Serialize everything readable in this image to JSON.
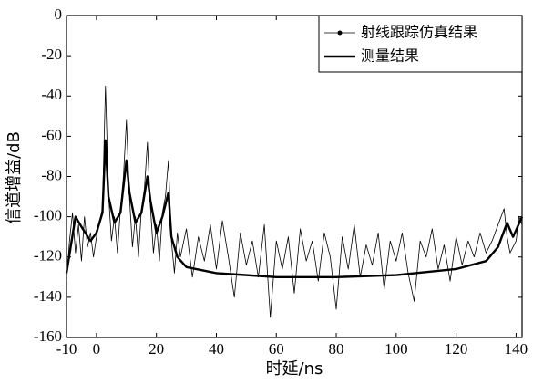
{
  "chart_data": {
    "type": "line",
    "x_label": "时延/ns",
    "y_label": "信道增益/dB",
    "xlim": [
      -10,
      142
    ],
    "xticks": [
      -10,
      0,
      20,
      40,
      60,
      80,
      100,
      120,
      140
    ],
    "ylim": [
      -160,
      0
    ],
    "yticks": [
      0,
      -20,
      -40,
      -60,
      -80,
      -100,
      -120,
      -140,
      -160
    ],
    "legend": "upper right",
    "series": [
      {
        "name": "射线跟踪仿真结果",
        "color": "#000000",
        "x": [
          -10,
          -9,
          -8,
          -7,
          -6,
          -5,
          -4,
          -3,
          -2,
          -1,
          0,
          1,
          2,
          3,
          4,
          5,
          6,
          7,
          8,
          9,
          10,
          11,
          12,
          13,
          14,
          15,
          16,
          17,
          18,
          19,
          20,
          21,
          22,
          23,
          24,
          25,
          26,
          27,
          28,
          30,
          32,
          34,
          36,
          38,
          40,
          42,
          44,
          46,
          48,
          50,
          52,
          54,
          56,
          58,
          60,
          62,
          64,
          66,
          68,
          70,
          72,
          74,
          76,
          78,
          80,
          82,
          84,
          86,
          88,
          90,
          92,
          94,
          96,
          98,
          100,
          102,
          104,
          106,
          108,
          110,
          112,
          114,
          116,
          118,
          120,
          122,
          124,
          126,
          128,
          130,
          132,
          134,
          136,
          137,
          138,
          140,
          141,
          142
        ],
        "values": [
          -132,
          -112,
          -98,
          -118,
          -104,
          -122,
          -100,
          -115,
          -108,
          -120,
          -110,
          -102,
          -96,
          -35,
          -88,
          -112,
          -100,
          -118,
          -96,
          -80,
          -52,
          -90,
          -115,
          -100,
          -120,
          -96,
          -86,
          -63,
          -95,
          -118,
          -104,
          -122,
          -98,
          -90,
          -72,
          -112,
          -128,
          -108,
          -120,
          -106,
          -130,
          -110,
          -122,
          -104,
          -126,
          -102,
          -120,
          -140,
          -108,
          -124,
          -112,
          -130,
          -104,
          -150,
          -112,
          -126,
          -110,
          -138,
          -106,
          -122,
          -112,
          -132,
          -108,
          -120,
          -146,
          -110,
          -126,
          -104,
          -130,
          -114,
          -124,
          -108,
          -136,
          -112,
          -122,
          -108,
          -128,
          -142,
          -112,
          -120,
          -106,
          -126,
          -114,
          -132,
          -110,
          -124,
          -112,
          -120,
          -108,
          -118,
          -112,
          -104,
          -96,
          -110,
          -118,
          -112,
          -100,
          -104
        ]
      },
      {
        "name": "测量结果",
        "color": "#000000",
        "x": [
          -10,
          -7,
          -5,
          -2,
          0,
          2,
          3,
          4,
          6,
          8,
          10,
          11,
          13,
          15,
          17,
          18,
          20,
          22,
          24,
          25,
          27,
          30,
          40,
          60,
          80,
          100,
          120,
          130,
          134,
          137,
          139,
          142
        ],
        "values": [
          -128,
          -100,
          -105,
          -112,
          -108,
          -98,
          -62,
          -90,
          -103,
          -98,
          -72,
          -88,
          -103,
          -98,
          -80,
          -92,
          -108,
          -100,
          -88,
          -110,
          -120,
          -125,
          -128,
          -130,
          -130,
          -129,
          -126,
          -122,
          -115,
          -103,
          -110,
          -100
        ]
      }
    ]
  }
}
